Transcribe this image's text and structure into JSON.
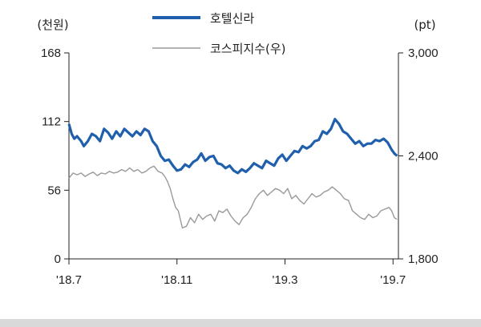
{
  "chart_data": {
    "type": "line",
    "left_unit": "(천원)",
    "right_unit": "(pt)",
    "left_ylim": [
      0,
      168
    ],
    "right_ylim": [
      1800,
      3000
    ],
    "left_ticks": [
      "168",
      "112",
      "56",
      "0"
    ],
    "right_ticks": [
      "3,000",
      "2,400",
      "1,800"
    ],
    "x_ticks": [
      "'18.7",
      "'18.11",
      "'19.3",
      "'19.7"
    ],
    "x_tick_positions": [
      0,
      4,
      8,
      12
    ],
    "x_range": [
      0,
      12.2
    ],
    "legend_position": "top-center",
    "colors": {
      "hotel": "#1f5fab",
      "kospi": "#999999",
      "axis": "#222222"
    },
    "series": [
      {
        "name": "호텔신라",
        "axis": "left",
        "x": [
          0.0,
          0.1,
          0.2,
          0.3,
          0.45,
          0.55,
          0.7,
          0.85,
          1.0,
          1.15,
          1.3,
          1.45,
          1.6,
          1.75,
          1.9,
          2.05,
          2.2,
          2.35,
          2.5,
          2.65,
          2.8,
          2.95,
          3.1,
          3.25,
          3.4,
          3.55,
          3.7,
          3.85,
          4.0,
          4.15,
          4.3,
          4.45,
          4.6,
          4.75,
          4.9,
          5.05,
          5.2,
          5.35,
          5.5,
          5.65,
          5.8,
          5.95,
          6.1,
          6.25,
          6.4,
          6.55,
          6.7,
          6.85,
          7.0,
          7.15,
          7.3,
          7.45,
          7.6,
          7.75,
          7.9,
          8.05,
          8.2,
          8.35,
          8.5,
          8.65,
          8.8,
          8.95,
          9.1,
          9.25,
          9.4,
          9.55,
          9.7,
          9.85,
          10.0,
          10.15,
          10.3,
          10.45,
          10.6,
          10.75,
          10.9,
          11.05,
          11.2,
          11.35,
          11.5,
          11.65,
          11.8,
          11.95,
          12.05,
          12.15
        ],
        "values": [
          110,
          102,
          98,
          100,
          96,
          92,
          96,
          102,
          100,
          96,
          106,
          103,
          98,
          104,
          100,
          106,
          103,
          100,
          104,
          101,
          106,
          104,
          96,
          92,
          84,
          80,
          81,
          76,
          72,
          73,
          77,
          75,
          79,
          81,
          86,
          80,
          83,
          84,
          78,
          77,
          74,
          76,
          72,
          70,
          73,
          71,
          74,
          78,
          76,
          74,
          80,
          78,
          76,
          82,
          85,
          80,
          84,
          88,
          87,
          92,
          90,
          92,
          96,
          97,
          104,
          102,
          106,
          114,
          110,
          104,
          102,
          98,
          94,
          96,
          92,
          94,
          94,
          97,
          96,
          98,
          95,
          89,
          86,
          84
        ]
      },
      {
        "name": "코스피지수(우)",
        "axis": "right",
        "x": [
          0.0,
          0.15,
          0.3,
          0.45,
          0.6,
          0.75,
          0.9,
          1.05,
          1.2,
          1.35,
          1.5,
          1.65,
          1.8,
          1.95,
          2.1,
          2.25,
          2.4,
          2.55,
          2.7,
          2.85,
          3.0,
          3.15,
          3.3,
          3.45,
          3.55,
          3.65,
          3.75,
          3.85,
          3.95,
          4.05,
          4.2,
          4.35,
          4.5,
          4.65,
          4.8,
          4.95,
          5.1,
          5.25,
          5.4,
          5.55,
          5.7,
          5.85,
          6.0,
          6.15,
          6.3,
          6.45,
          6.6,
          6.75,
          6.9,
          7.05,
          7.2,
          7.35,
          7.5,
          7.65,
          7.8,
          7.95,
          8.1,
          8.25,
          8.4,
          8.55,
          8.7,
          8.85,
          9.0,
          9.15,
          9.3,
          9.45,
          9.6,
          9.75,
          9.9,
          10.05,
          10.2,
          10.35,
          10.5,
          10.65,
          10.8,
          10.95,
          11.1,
          11.25,
          11.4,
          11.55,
          11.7,
          11.85,
          11.95,
          12.05,
          12.15
        ],
        "values": [
          2270,
          2300,
          2290,
          2300,
          2280,
          2295,
          2305,
          2285,
          2300,
          2295,
          2310,
          2300,
          2305,
          2320,
          2310,
          2330,
          2310,
          2320,
          2300,
          2310,
          2330,
          2340,
          2310,
          2300,
          2280,
          2250,
          2210,
          2150,
          2100,
          2080,
          1980,
          1990,
          2040,
          2010,
          2060,
          2030,
          2050,
          2060,
          2020,
          2080,
          2070,
          2090,
          2050,
          2020,
          2000,
          2040,
          2060,
          2100,
          2150,
          2180,
          2200,
          2170,
          2190,
          2210,
          2200,
          2180,
          2210,
          2150,
          2170,
          2140,
          2120,
          2150,
          2180,
          2160,
          2170,
          2190,
          2200,
          2220,
          2200,
          2180,
          2150,
          2140,
          2080,
          2060,
          2040,
          2030,
          2060,
          2040,
          2050,
          2080,
          2090,
          2100,
          2080,
          2040,
          2030
        ]
      }
    ]
  }
}
